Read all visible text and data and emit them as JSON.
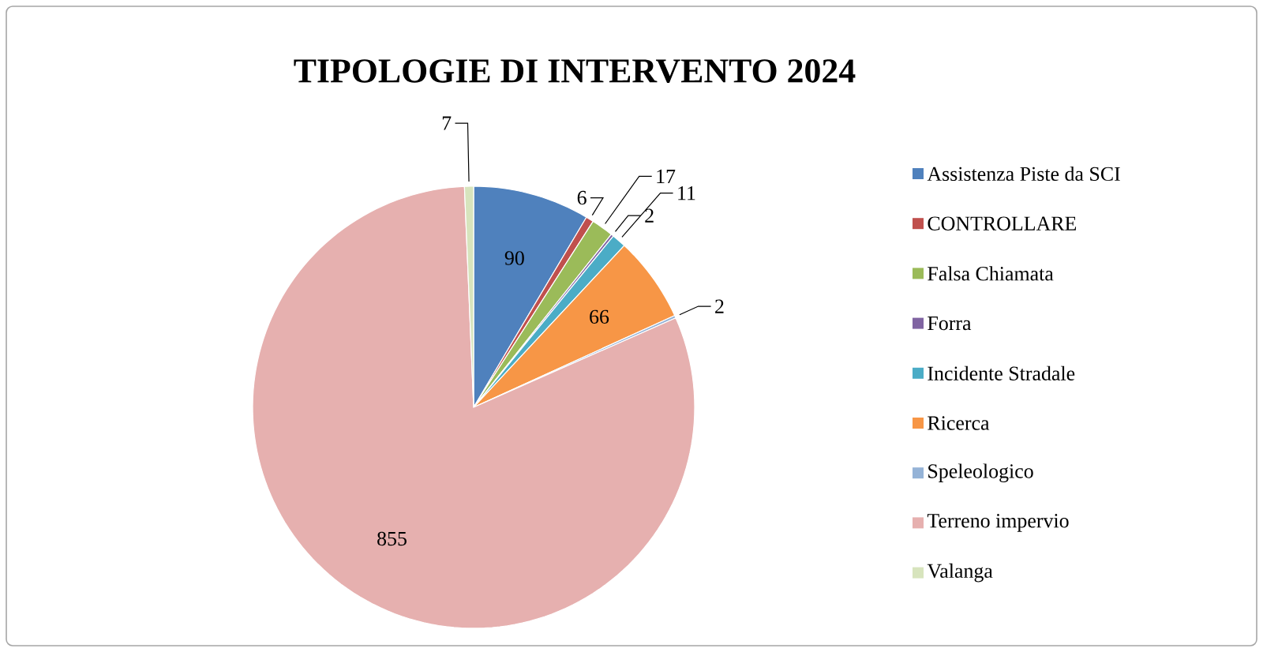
{
  "chart_data": {
    "type": "pie",
    "title": "TIPOLOGIE DI INTERVENTO 2024",
    "categories": [
      "Assistenza Piste da SCI",
      "CONTROLLARE",
      "Falsa Chiamata",
      "Forra",
      "Incidente Stradale",
      "Ricerca",
      "Speleologico",
      "Terreno impervio",
      "Valanga"
    ],
    "values": [
      90,
      6,
      17,
      2,
      11,
      66,
      2,
      855,
      7
    ],
    "colors": [
      "#4f81bd",
      "#c0504d",
      "#9bbb59",
      "#8064a2",
      "#4bacc6",
      "#f79646",
      "#95b3d7",
      "#e6b0af",
      "#d7e4bd"
    ],
    "data_labels": true,
    "legend": "right"
  }
}
